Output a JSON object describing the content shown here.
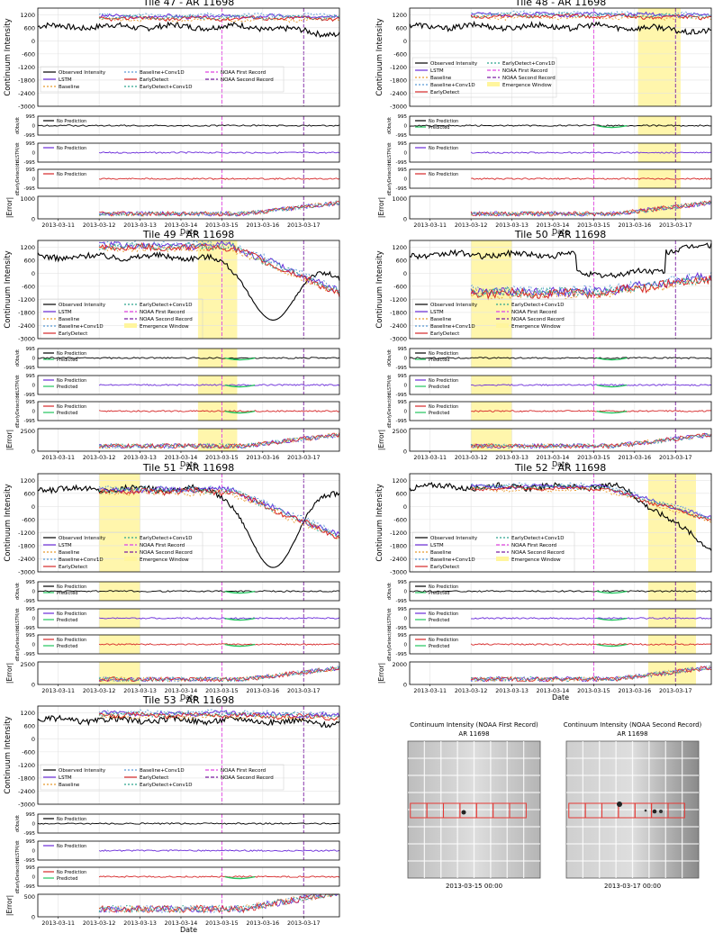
{
  "figure": {
    "date_ticks": [
      "2013-03-11",
      "2013-03-12",
      "2013-03-13",
      "2013-03-14",
      "2013-03-15",
      "2013-03-16",
      "2013-03-17"
    ],
    "xlabel": "Date",
    "main_ylabel": "Continuum Intensity",
    "deriv_ylabels": [
      "dObs/dt",
      "dLSTM/dt",
      "dEarlyDetect/dt"
    ],
    "error_ylabel": "|Error|",
    "main_yticks": [
      1200,
      600,
      0,
      -600,
      -1200,
      -1800,
      -2400,
      -3000
    ],
    "deriv_yticks": [
      995,
      0,
      -995
    ],
    "legend_labels": [
      "Observed Intensity",
      "LSTM",
      "Baseline",
      "Baseline+Conv1D",
      "EarlyDetect",
      "EarlyDetect+Conv1D",
      "NOAA First Record",
      "NOAA Second Record",
      "Emergence Window"
    ],
    "deriv_legend_labels": [
      "No Prediction",
      "Predicted"
    ],
    "series_colors": {
      "observed": "#000000",
      "lstm": "#6a2bd9",
      "baseline": "#e89b2e",
      "baseline_conv1d": "#5b9bd5",
      "earlydetect": "#d62728",
      "earlydetect_conv1d": "#2ca58d",
      "noaa_first": "#e044e0",
      "noaa_second": "#7b1fa2",
      "emergence": "#fff59d",
      "predicted": "#22c55e"
    }
  },
  "chart_data": [
    {
      "type": "line",
      "title": "Tile 47 - AR 11698",
      "x": [
        "2013-03-10T12:00",
        "2013-03-17T21:00"
      ],
      "ylim": [
        -3000,
        1500
      ],
      "error_ticks": [
        1000,
        0
      ],
      "noaa_first": "2013-03-15T00:00",
      "noaa_second": "2013-03-17T00:00",
      "emergence_window": null,
      "observed_mean": 650,
      "observed_end": 300,
      "model_level": 1050,
      "model_spread": 150,
      "model_end": 1050,
      "error_peak": 900,
      "deriv_predicted": [
        false,
        false,
        false
      ]
    },
    {
      "type": "line",
      "title": "Tile 48 - AR 11698",
      "x": [
        "2013-03-10T12:00",
        "2013-03-17T21:00"
      ],
      "ylim": [
        -3000,
        1500
      ],
      "error_ticks": [
        1000,
        0
      ],
      "noaa_first": "2013-03-15T00:00",
      "noaa_second": "2013-03-17T00:00",
      "emergence_window": [
        "2013-03-16T02:00",
        "2013-03-17T03:00"
      ],
      "observed_mean": 650,
      "observed_end": 400,
      "model_level": 1150,
      "model_spread": 150,
      "model_end": 1100,
      "error_peak": 900,
      "deriv_predicted": [
        true,
        false,
        false
      ]
    },
    {
      "type": "line",
      "title": "Tile 49 - AR 11698",
      "x": [
        "2013-03-10T12:00",
        "2013-03-17T21:00"
      ],
      "ylim": [
        -3000,
        1500
      ],
      "error_ticks": [
        2500,
        0
      ],
      "noaa_first": "2013-03-15T00:00",
      "noaa_second": "2013-03-17T00:00",
      "emergence_window": [
        "2013-03-14T10:00",
        "2013-03-15T09:00"
      ],
      "observed_mean": 750,
      "observed_end": -300,
      "observed_min": -2150,
      "model_level": 1200,
      "model_spread": 300,
      "model_end": -900,
      "error_peak": 2300,
      "deriv_predicted": [
        true,
        true,
        true
      ]
    },
    {
      "type": "line",
      "title": "Tile 50 - AR 11698",
      "x": [
        "2013-03-10T12:00",
        "2013-03-17T21:00"
      ],
      "ylim": [
        -3000,
        1500
      ],
      "error_ticks": [
        2500,
        0
      ],
      "noaa_first": "2013-03-15T00:00",
      "noaa_second": "2013-03-17T00:00",
      "emergence_window": [
        "2013-03-12T00:00",
        "2013-03-13T00:00"
      ],
      "observed_mean": 850,
      "observed_end": 1250,
      "model_level": -900,
      "model_spread": 400,
      "model_end": -200,
      "error_peak": 2300,
      "deriv_predicted": [
        true,
        true,
        true
      ]
    },
    {
      "type": "line",
      "title": "Tile 51 - AR 11698",
      "x": [
        "2013-03-10T12:00",
        "2013-03-17T21:00"
      ],
      "ylim": [
        -3000,
        1500
      ],
      "error_ticks": [
        2500,
        0
      ],
      "noaa_first": "2013-03-15T00:00",
      "noaa_second": "2013-03-17T00:00",
      "emergence_window": [
        "2013-03-12T00:00",
        "2013-03-13T00:00"
      ],
      "observed_mean": 800,
      "observed_end": 700,
      "observed_min": -2800,
      "model_level": 700,
      "model_spread": 250,
      "model_end": -1400,
      "error_peak": 2300,
      "deriv_predicted": [
        true,
        true,
        true
      ]
    },
    {
      "type": "line",
      "title": "Tile 52 - AR 11698",
      "x": [
        "2013-03-10T12:00",
        "2013-03-17T21:00"
      ],
      "ylim": [
        -3000,
        1500
      ],
      "error_ticks": [
        2000,
        0
      ],
      "noaa_first": "2013-03-15T00:00",
      "noaa_second": "2013-03-17T00:00",
      "emergence_window": [
        "2013-03-16T08:00",
        "2013-03-17T12:00"
      ],
      "observed_mean": 900,
      "observed_end": -1900,
      "model_level": 850,
      "model_spread": 150,
      "model_end": -600,
      "error_peak": 1900,
      "deriv_predicted": [
        true,
        true,
        true
      ]
    },
    {
      "type": "line",
      "title": "Tile 53 - AR 11698",
      "x": [
        "2013-03-10T12:00",
        "2013-03-17T21:00"
      ],
      "ylim": [
        -3000,
        1500
      ],
      "error_ticks": [
        500,
        0
      ],
      "noaa_first": "2013-03-15T00:00",
      "noaa_second": "2013-03-17T00:00",
      "emergence_window": null,
      "observed_mean": 850,
      "observed_end": 700,
      "model_level": 1100,
      "model_spread": 200,
      "model_end": 1000,
      "error_peak": 700,
      "deriv_predicted": [
        false,
        false,
        true
      ]
    }
  ],
  "images": [
    {
      "title": "Continuum Intensity (NOAA First Record)",
      "subtitle": "AR 11698",
      "timestamp": "2013-03-15 00:00"
    },
    {
      "title": "Continuum Intensity (NOAA Second Record)",
      "subtitle": "AR 11698",
      "timestamp": "2013-03-17 00:00"
    }
  ]
}
